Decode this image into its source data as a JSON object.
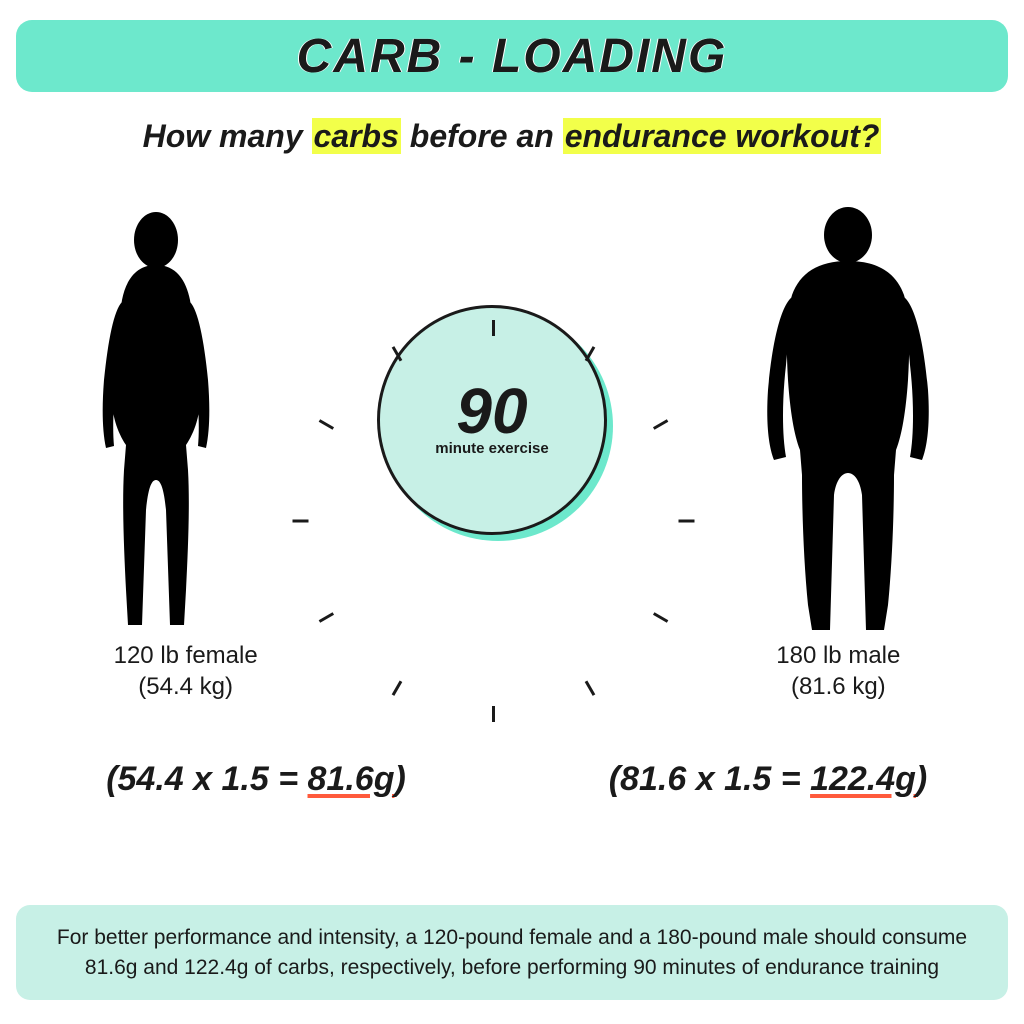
{
  "colors": {
    "accent": "#6de8cc",
    "accent_light": "#c7f0e6",
    "highlight": "#f2ff4a",
    "underline": "#ff5a3c",
    "text": "#1a1a1a",
    "bg": "#ffffff"
  },
  "title": "CARB - LOADING",
  "subtitle": {
    "prefix": "How many ",
    "word1": "carbs",
    "mid": " before an ",
    "word2": "endurance workout?"
  },
  "clock": {
    "number": "90",
    "label": "minute exercise",
    "tick_count": 12
  },
  "female": {
    "label_line1": "120 lb female",
    "label_line2": "(54.4 kg)",
    "calc_prefix": "(54.4 x 1.5 = ",
    "calc_result": "81.6g",
    "calc_suffix": ")"
  },
  "male": {
    "label_line1": "180 lb male",
    "label_line2": "(81.6 kg)",
    "calc_prefix": "(81.6 x 1.5 = ",
    "calc_result": "122.4g",
    "calc_suffix": ")"
  },
  "footer": "For better performance and intensity, a 120-pound female and a 180-pound male should consume 81.6g and 122.4g of carbs, respectively, before performing 90 minutes of endurance training",
  "typography": {
    "title_fontsize": 48,
    "subtitle_fontsize": 32,
    "clock_num_fontsize": 64,
    "body_label_fontsize": 24,
    "calc_fontsize": 34,
    "footer_fontsize": 21
  }
}
